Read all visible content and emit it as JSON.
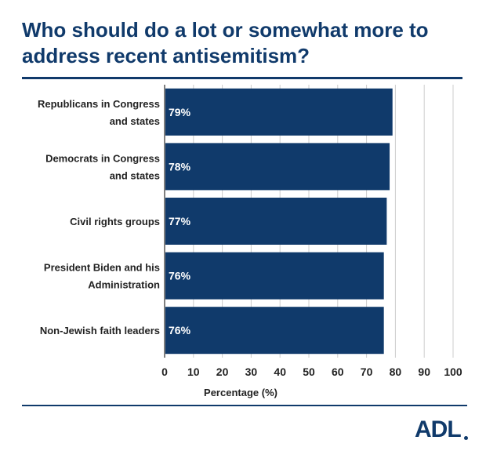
{
  "title": "Who should do a lot or somewhat more to address recent antisemitism?",
  "logo_text": "ADL",
  "colors": {
    "bar": "#103a6b",
    "title": "#103a6b",
    "grid": "#cccccc",
    "text": "#222222"
  },
  "chart_data": {
    "type": "bar",
    "orientation": "horizontal",
    "categories": [
      "Republicans in Congress and states",
      "Democrats in Congress and states",
      "Civil rights groups",
      "President Biden and his Administration",
      "Non-Jewish faith leaders"
    ],
    "values": [
      79,
      78,
      77,
      76,
      76
    ],
    "data_labels": [
      "79%",
      "78%",
      "77%",
      "76%",
      "76%"
    ],
    "xlabel": "Percentage (%)",
    "ylabel": "",
    "xlim": [
      0,
      100
    ],
    "ticks": [
      0,
      10,
      20,
      30,
      40,
      50,
      60,
      70,
      80,
      90,
      100
    ],
    "grid": true,
    "legend": "none"
  }
}
